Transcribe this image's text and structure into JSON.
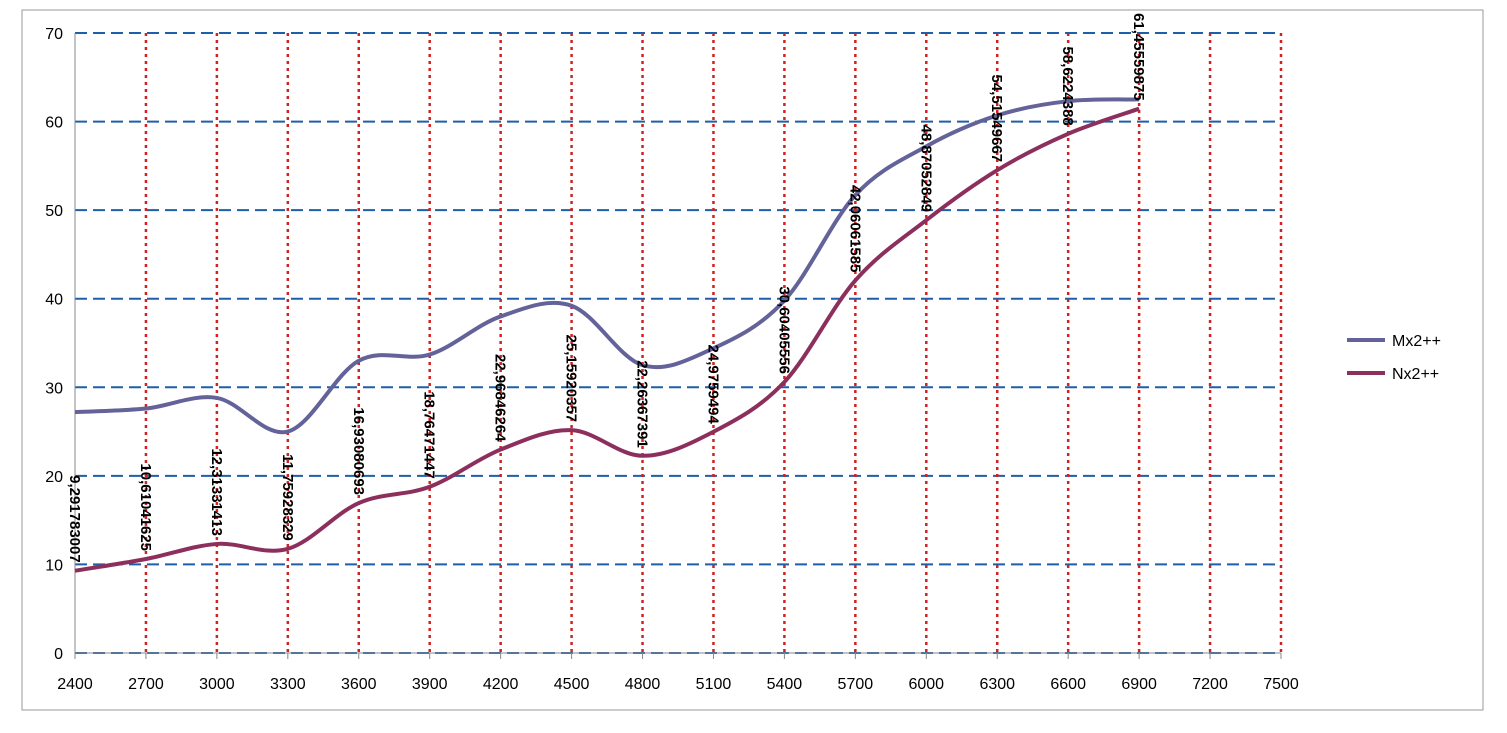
{
  "chart_data": {
    "type": "line",
    "x": [
      2400,
      2700,
      3000,
      3300,
      3600,
      3900,
      4200,
      4500,
      4800,
      5100,
      5400,
      5700,
      6000,
      6300,
      6600,
      6900
    ],
    "series": [
      {
        "name": "Mx2++",
        "color": "#63639a",
        "values": [
          27.2,
          27.6,
          28.8,
          25.0,
          33.0,
          33.7,
          38.0,
          39.2,
          32.5,
          34.4,
          39.8,
          51.7,
          57.2,
          60.7,
          62.3,
          62.5
        ]
      },
      {
        "name": "Nx2++",
        "color": "#8c2f5c",
        "values": [
          9.291783007,
          10.61041625,
          12.31331413,
          11.75928329,
          16.93080693,
          18.76471447,
          22.96846264,
          25.15920357,
          22.26367391,
          24.9759494,
          30.60405556,
          42.06061585,
          48.87052849,
          54.51549667,
          58.6224388,
          61.45559875
        ],
        "value_labels": [
          "9,291783007",
          "10,61041625",
          "12,31331413",
          "11,75928329",
          "16,93080693",
          "18,76471447",
          "22,96846264",
          "25,15920357",
          "22,26367391",
          "24,9759494",
          "30,60405556",
          "42,06061585",
          "48,87052849",
          "54,51549667",
          "58,6224388",
          "61,45559875"
        ]
      }
    ],
    "xlim": [
      2400,
      7500
    ],
    "xticks": [
      2400,
      2700,
      3000,
      3300,
      3600,
      3900,
      4200,
      4500,
      4800,
      5100,
      5400,
      5700,
      6000,
      6300,
      6600,
      6900,
      7200,
      7500
    ],
    "ylim": [
      0,
      70
    ],
    "yticks": [
      0,
      10,
      20,
      30,
      40,
      50,
      60,
      70
    ],
    "grid": true,
    "x_grid_color": "#d42020",
    "y_grid_color": "#1f5fa8",
    "legend": "right"
  }
}
